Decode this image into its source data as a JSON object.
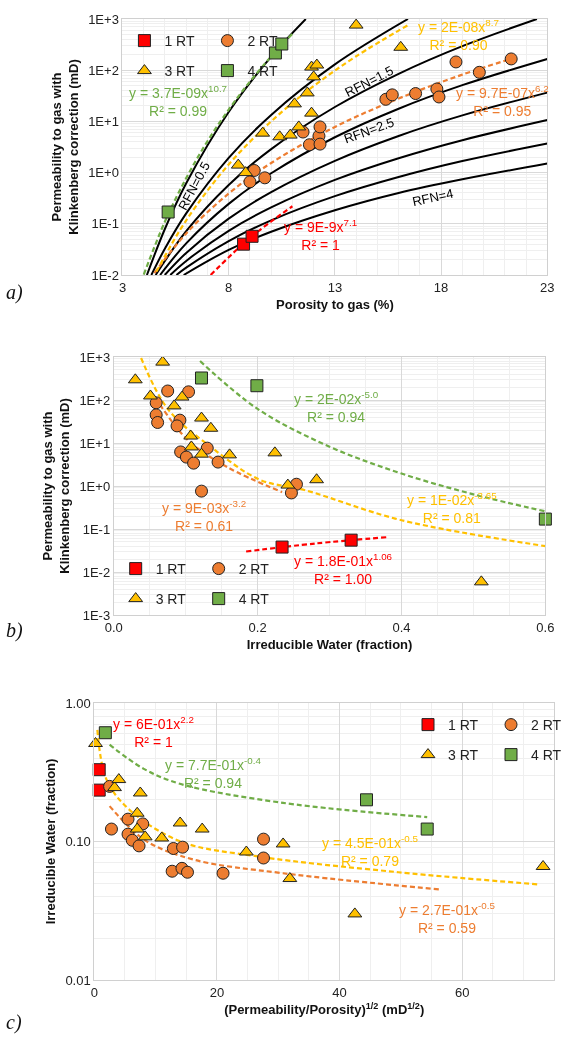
{
  "chart_data": [
    {
      "type": "scatter",
      "xlabel": "Porosity to gas (%)",
      "ylabel": "Permeability to gas with\nKlinkenberg correction (mD)",
      "log": "y",
      "grid": true,
      "legend": "top left",
      "xlim": [
        3,
        23
      ],
      "xticks": [
        3,
        8,
        13,
        18,
        23
      ],
      "ylim": [
        0.01,
        1000
      ],
      "yticks": [
        {
          "value": 0.01,
          "label": "1E-2"
        },
        {
          "value": 0.1,
          "label": "1E-1"
        },
        {
          "value": 1,
          "label": "1E+0"
        },
        {
          "value": 10,
          "label": "1E+1"
        },
        {
          "value": 100,
          "label": "1E+2"
        },
        {
          "value": 1000,
          "label": "1E+3"
        }
      ],
      "annotations": [
        "a)"
      ],
      "series": [
        {
          "name": "1 RT",
          "marker": "square",
          "color": "#ff0000",
          "x": [
            8.7,
            9.1
          ],
          "values": [
            0.04,
            0.057
          ]
        },
        {
          "name": "2 RT",
          "marker": "circle",
          "color": "#ed7d31",
          "x": [
            9.0,
            9.2,
            9.7,
            11.5,
            11.8,
            12.25,
            12.3,
            12.3,
            15.4,
            15.7,
            16.8,
            17.8,
            17.9,
            18.7,
            19.8,
            21.3
          ],
          "values": [
            0.66,
            1.1,
            0.79,
            6.2,
            3.5,
            5.2,
            3.6,
            7.8,
            27,
            33,
            35,
            43,
            30,
            145,
            91,
            166
          ]
        },
        {
          "name": "3 RT",
          "marker": "triangle",
          "color": "#ffc000",
          "x": [
            8.45,
            8.8,
            9.6,
            10.4,
            10.9,
            11.1,
            11.3,
            11.7,
            11.9,
            11.9,
            12.0,
            12.15,
            14.0,
            16.1
          ],
          "values": [
            1.4,
            1.0,
            5.9,
            5.0,
            5.4,
            22,
            7.8,
            36,
            14.5,
            115,
            74,
            126,
            760,
            280
          ]
        },
        {
          "name": "4 RT",
          "marker": "square",
          "color": "#70ad47",
          "x": [
            5.15,
            10.2,
            10.5
          ],
          "values": [
            0.17,
            217,
            325
          ]
        },
        {
          "name": "RFN=0.5",
          "type": "line",
          "marker": "none",
          "line_style": "solid",
          "color": "#000000",
          "x": [
            4.15,
            5,
            6,
            8,
            10,
            11.63
          ],
          "values": [
            0.01,
            0.08,
            0.62,
            15.3,
            185,
            1000
          ]
        },
        {
          "type": "line",
          "marker": "none",
          "line_style": "solid",
          "color": "#000000",
          "x": [
            4.36,
            5,
            6,
            8,
            10,
            13,
            16.44
          ],
          "values": [
            0.01,
            0.033,
            0.16,
            1.94,
            13.4,
            130,
            1000
          ]
        },
        {
          "name": "RFN=1.5",
          "type": "line",
          "marker": "none",
          "line_style": "solid",
          "color": "#000000",
          "x": [
            4.56,
            6,
            8,
            10,
            13,
            16,
            19,
            22.51
          ],
          "values": [
            0.01,
            0.072,
            0.575,
            2.88,
            19.1,
            85,
            295,
            1000
          ]
        },
        {
          "type": "line",
          "marker": "none",
          "line_style": "solid",
          "color": "#000000",
          "x": [
            4.77,
            6,
            8,
            10,
            13,
            16,
            19,
            23
          ],
          "values": [
            0.01,
            0.0415,
            0.245,
            0.97,
            4.9,
            17.7,
            51,
            166
          ]
        },
        {
          "name": "RFN=2.5",
          "type": "line",
          "marker": "none",
          "line_style": "solid",
          "color": "#000000",
          "x": [
            4.99,
            6,
            8,
            10,
            13,
            16,
            19,
            23
          ],
          "values": [
            0.01,
            0.027,
            0.126,
            0.417,
            1.7,
            5.2,
            13.1,
            36.5
          ]
        },
        {
          "type": "line",
          "marker": "none",
          "line_style": "solid",
          "color": "#000000",
          "x": [
            5.25,
            6,
            8,
            10,
            13,
            16,
            19,
            23
          ],
          "values": [
            0.01,
            0.0188,
            0.073,
            0.209,
            0.72,
            1.91,
            4.3,
            10.6
          ]
        },
        {
          "type": "line",
          "marker": "none",
          "line_style": "solid",
          "color": "#000000",
          "x": [
            5.54,
            6,
            8,
            10,
            13,
            16,
            19,
            23
          ],
          "values": [
            0.01,
            0.0139,
            0.046,
            0.117,
            0.347,
            0.82,
            1.68,
            3.7
          ]
        },
        {
          "name": "RFN=4",
          "type": "line",
          "marker": "none",
          "line_style": "solid",
          "color": "#000000",
          "x": [
            5.88,
            8,
            10,
            13,
            16,
            19,
            23
          ],
          "values": [
            0.01,
            0.031,
            0.07,
            0.184,
            0.4,
            0.74,
            1.5
          ]
        },
        {
          "name": "y = 9E-9x$^{7.1}$\nR² = 1",
          "type": "line",
          "marker": "none",
          "line_style": "dashed",
          "color": "#ff0000",
          "x": [
            7.15,
            9,
            11
          ],
          "values": [
            0.01,
            0.053,
            0.22
          ]
        },
        {
          "name": "y = 9.7E-07x$^{6.2}$\nR² = 0.95",
          "type": "line",
          "marker": "none",
          "line_style": "dashed",
          "color": "#ed7d31",
          "x": [
            4.5,
            6,
            8,
            10,
            13,
            16,
            19,
            21.3
          ],
          "values": [
            0.0109,
            0.065,
            0.39,
            1.54,
            7.8,
            28,
            82,
            167
          ]
        },
        {
          "name": "y = 2E-08x$^{8.7}$\nR² = 0.90",
          "type": "line",
          "marker": "none",
          "line_style": "dashed",
          "color": "#ffc000",
          "x": [
            4.6,
            6,
            8,
            10,
            12,
            14,
            16.5
          ],
          "values": [
            0.0117,
            0.117,
            1.44,
            10,
            49,
            187,
            782
          ]
        },
        {
          "name": "y = 3.7E-09x$^{10.7}$\nR² = 0.99",
          "type": "line",
          "marker": "none",
          "line_style": "dashed",
          "color": "#70ad47",
          "x": [
            4,
            5,
            6,
            7,
            8,
            9,
            10,
            11
          ],
          "values": [
            0.0102,
            0.111,
            0.78,
            4.1,
            17,
            60,
            185,
            514
          ]
        }
      ]
    },
    {
      "type": "scatter",
      "xlabel": "Irreducible Water (fraction)",
      "ylabel": "Permeability to gas with\nKlinkenberg correction (mD)",
      "log": "y",
      "grid": true,
      "legend": "bottom left",
      "xlim": [
        0,
        0.6
      ],
      "xticks": [
        {
          "value": 0,
          "label": "0.0"
        },
        {
          "value": 0.2,
          "label": "0.2"
        },
        {
          "value": 0.4,
          "label": "0.4"
        },
        {
          "value": 0.6,
          "label": "0.6"
        }
      ],
      "ylim": [
        0.001,
        1000
      ],
      "yticks": [
        {
          "value": 0.001,
          "label": "1E-3"
        },
        {
          "value": 0.01,
          "label": "1E-2"
        },
        {
          "value": 0.1,
          "label": "1E-1"
        },
        {
          "value": 1,
          "label": "1E+0"
        },
        {
          "value": 10,
          "label": "1E+1"
        },
        {
          "value": 100,
          "label": "1E+2"
        },
        {
          "value": 1000,
          "label": "1E+3"
        }
      ],
      "annotations": [
        "b)"
      ],
      "series": [
        {
          "name": "1 RT",
          "marker": "square",
          "color": "#ff0000",
          "x": [
            0.234,
            0.33
          ],
          "values": [
            0.038,
            0.055
          ]
        },
        {
          "name": "2 RT",
          "marker": "circle",
          "color": "#ed7d31",
          "x": [
            0.075,
            0.104,
            0.059,
            0.059,
            0.061,
            0.092,
            0.088,
            0.093,
            0.101,
            0.111,
            0.13,
            0.145,
            0.122,
            0.254,
            0.247
          ],
          "values": [
            162,
            155,
            86,
            45,
            30,
            34,
            25,
            6.2,
            4.7,
            3.4,
            7.6,
            3.6,
            0.76,
            1.1,
            0.69
          ]
        },
        {
          "name": "3 RT",
          "marker": "triangle",
          "color": "#ffc000",
          "x": [
            0.03,
            0.068,
            0.051,
            0.095,
            0.084,
            0.122,
            0.135,
            0.107,
            0.108,
            0.122,
            0.161,
            0.224,
            0.242,
            0.282,
            0.511
          ],
          "values": [
            295,
            760,
            124,
            117,
            73,
            38,
            22,
            14.5,
            8.1,
            5.5,
            5.3,
            5.9,
            1.05,
            1.4,
            0.0059
          ]
        },
        {
          "name": "4 RT",
          "marker": "square",
          "color": "#70ad47",
          "x": [
            0.122,
            0.199,
            0.6
          ],
          "values": [
            325,
            215,
            0.17
          ]
        },
        {
          "name": "y = 1.8E-01x$^{1.06}$\nR² = 1.00",
          "type": "line",
          "marker": "none",
          "line_style": "dashed",
          "color": "#ff0000",
          "x": [
            0.184,
            0.28,
            0.382
          ],
          "values": [
            0.03,
            0.046,
            0.065
          ]
        },
        {
          "name": "y = 9E-03x$^{-3.2}$\nR² = 0.61",
          "type": "line",
          "marker": "none",
          "line_style": "dashed",
          "color": "#ed7d31",
          "x": [
            0.058,
            0.103,
            0.157,
            0.234
          ],
          "values": [
            112,
            11.7,
            2.8,
            0.72
          ]
        },
        {
          "name": "y = 1E-02x$^{-3.65}$\nR² = 0.81",
          "type": "line",
          "marker": "none",
          "line_style": "dashed",
          "color": "#ffc000",
          "x": [
            0.038,
            0.076,
            0.135,
            0.203,
            0.265,
            0.4,
            0.6
          ],
          "values": [
            950,
            59,
            8.1,
            1.4,
            0.81,
            0.16,
            0.04
          ]
        },
        {
          "name": "y = 2E-02x$^{-5.0}$\nR² = 0.94",
          "type": "line",
          "marker": "none",
          "line_style": "dashed",
          "color": "#70ad47",
          "x": [
            0.12,
            0.2,
            0.3,
            0.4,
            0.5,
            0.6
          ],
          "values": [
            805,
            62,
            8.2,
            1.95,
            0.64,
            0.257
          ]
        }
      ]
    },
    {
      "type": "scatter",
      "xlabel": "(Permeability/Porosity)$^{1/2}$ (mD$^{1/2}$)",
      "ylabel": "Irreducible Water (fraction)",
      "log": "y",
      "grid": true,
      "legend": "top right",
      "xlim": [
        0,
        75
      ],
      "xticks": [
        0,
        20,
        40,
        60
      ],
      "ylim": [
        0.01,
        1
      ],
      "yticks": [
        {
          "value": 0.01,
          "label": "0.01"
        },
        {
          "value": 0.1,
          "label": "0.10"
        },
        {
          "value": 1,
          "label": "1.00"
        }
      ],
      "annotations": [
        "c)",
        "y = 6E-01x$^{2.2}$\nR² = 1"
      ],
      "series": [
        {
          "name": "1 RT",
          "marker": "square",
          "color": "#ff0000",
          "x": [
            0.8,
            0.8
          ],
          "values": [
            0.33,
            0.235
          ]
        },
        {
          "name": "2 RT",
          "marker": "circle",
          "color": "#ed7d31",
          "x": [
            2.5,
            2.8,
            5.5,
            5.5,
            6.2,
            7.3,
            7.9,
            12.9,
            14.4,
            12.7,
            14.3,
            15.2,
            21.0,
            27.6,
            27.6
          ],
          "values": [
            0.25,
            0.123,
            0.145,
            0.113,
            0.102,
            0.093,
            0.134,
            0.089,
            0.091,
            0.061,
            0.064,
            0.06,
            0.059,
            0.104,
            0.076
          ]
        },
        {
          "name": "3 RT",
          "marker": "triangle",
          "color": "#ffc000",
          "x": [
            0.2,
            3.3,
            4.0,
            7.5,
            7.0,
            7.0,
            8.3,
            11,
            14.0,
            17.6,
            24.8,
            30.8,
            31.9,
            42.5,
            73.2
          ],
          "values": [
            0.51,
            0.245,
            0.28,
            0.224,
            0.16,
            0.123,
            0.108,
            0.106,
            0.136,
            0.123,
            0.084,
            0.096,
            0.054,
            0.03,
            0.066
          ]
        },
        {
          "name": "4 RT",
          "marker": "square",
          "color": "#70ad47",
          "x": [
            1.8,
            44.4,
            54.3
          ],
          "values": [
            0.61,
            0.2,
            0.123
          ]
        },
        {
          "name": "y = 2.7E-01x$^{-0.5}$\nR² = 0.59",
          "type": "line",
          "marker": "none",
          "line_style": "dashed",
          "color": "#ed7d31",
          "x": [
            2.5,
            8.3,
            16.2,
            30.8,
            56.5
          ],
          "values": [
            0.18,
            0.102,
            0.074,
            0.059,
            0.045
          ]
        },
        {
          "name": "y = 4.5E-01x$^{-0.5}$\nR² = 0.79",
          "type": "line",
          "marker": "none",
          "line_style": "dashed",
          "color": "#ffc000",
          "x": [
            0.5,
            2,
            5.7,
            14.1,
            26.7,
            49.6,
            72.4
          ],
          "values": [
            0.64,
            0.28,
            0.17,
            0.1,
            0.078,
            0.06,
            0.049
          ]
        },
        {
          "name": "y = 7.7E-01x$^{-0.4}$\nR² = 0.94",
          "type": "line",
          "marker": "none",
          "line_style": "dashed",
          "color": "#70ad47",
          "x": [
            2.5,
            8,
            14.1,
            30.8,
            54.3
          ],
          "values": [
            0.5,
            0.336,
            0.26,
            0.19,
            0.15
          ]
        }
      ]
    }
  ]
}
